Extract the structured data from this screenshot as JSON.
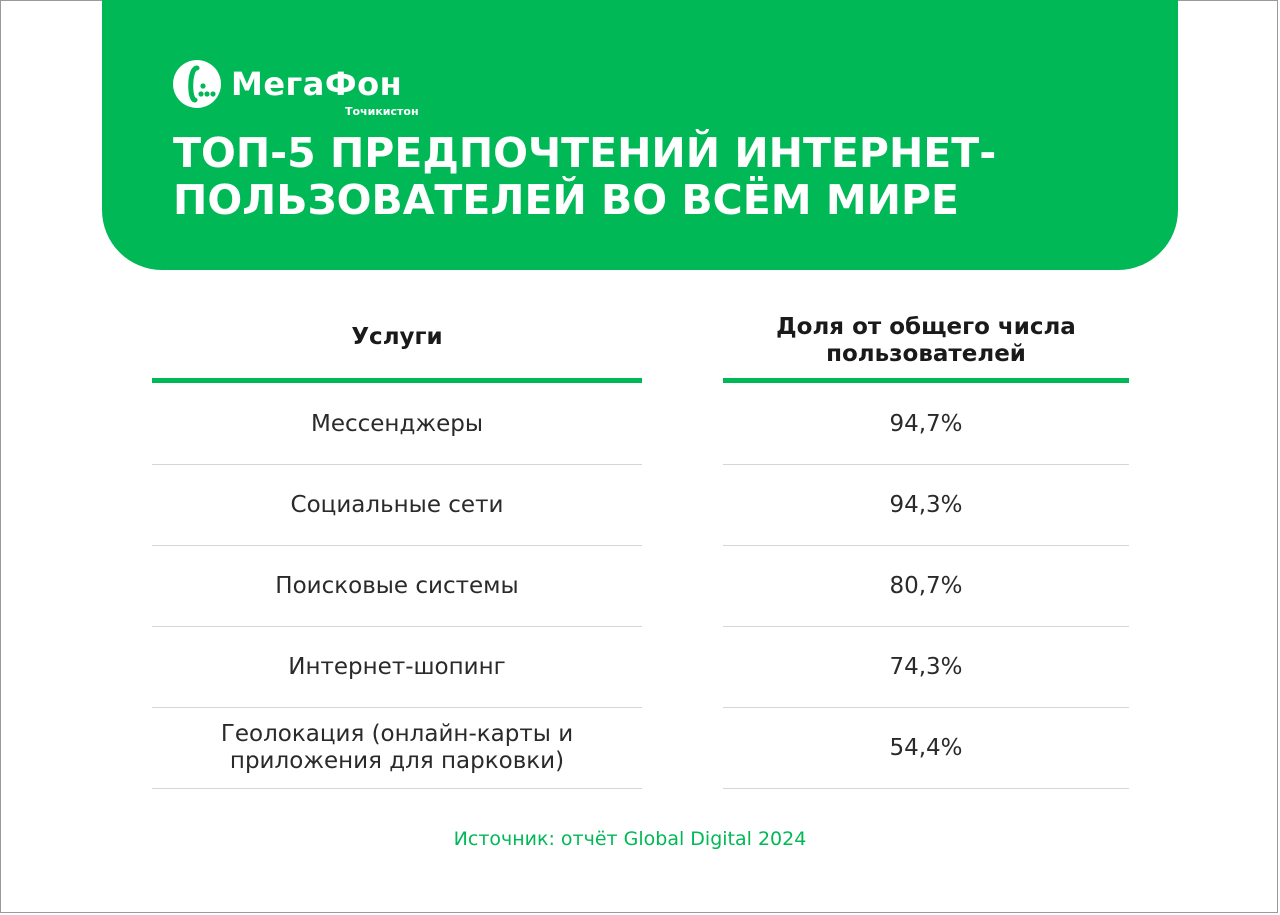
{
  "brand": {
    "name": "МегаФон",
    "region": "Точикистон",
    "color_primary": "#00b956",
    "logo_icon": "megafon-logo-icon"
  },
  "title": "ТОП-5 ПРЕДПОЧТЕНИЙ ИНТЕРНЕТ-ПОЛЬЗОВАТЕЛЕЙ ВО ВСЁМ МИРЕ",
  "chart_data": {
    "type": "table",
    "title": "ТОП-5 ПРЕДПОЧТЕНИЙ ИНТЕРНЕТ-ПОЛЬЗОВАТЕЛЕЙ ВО ВСЁМ МИРЕ",
    "columns": [
      "Услуги",
      "Доля от общего числа пользователей"
    ],
    "rows": [
      {
        "service": "Мессенджеры",
        "share_label": "94,7%",
        "share": 94.7
      },
      {
        "service": "Социальные сети",
        "share_label": "94,3%",
        "share": 94.3
      },
      {
        "service": "Поисковые системы",
        "share_label": "80,7%",
        "share": 80.7
      },
      {
        "service": "Интернет-шопинг",
        "share_label": "74,3%",
        "share": 74.3
      },
      {
        "service": "Геолокация (онлайн-карты и приложения для парковки)",
        "share_label": "54,4%",
        "share": 54.4
      }
    ],
    "source": "Источник: отчёт Global Digital 2024"
  }
}
